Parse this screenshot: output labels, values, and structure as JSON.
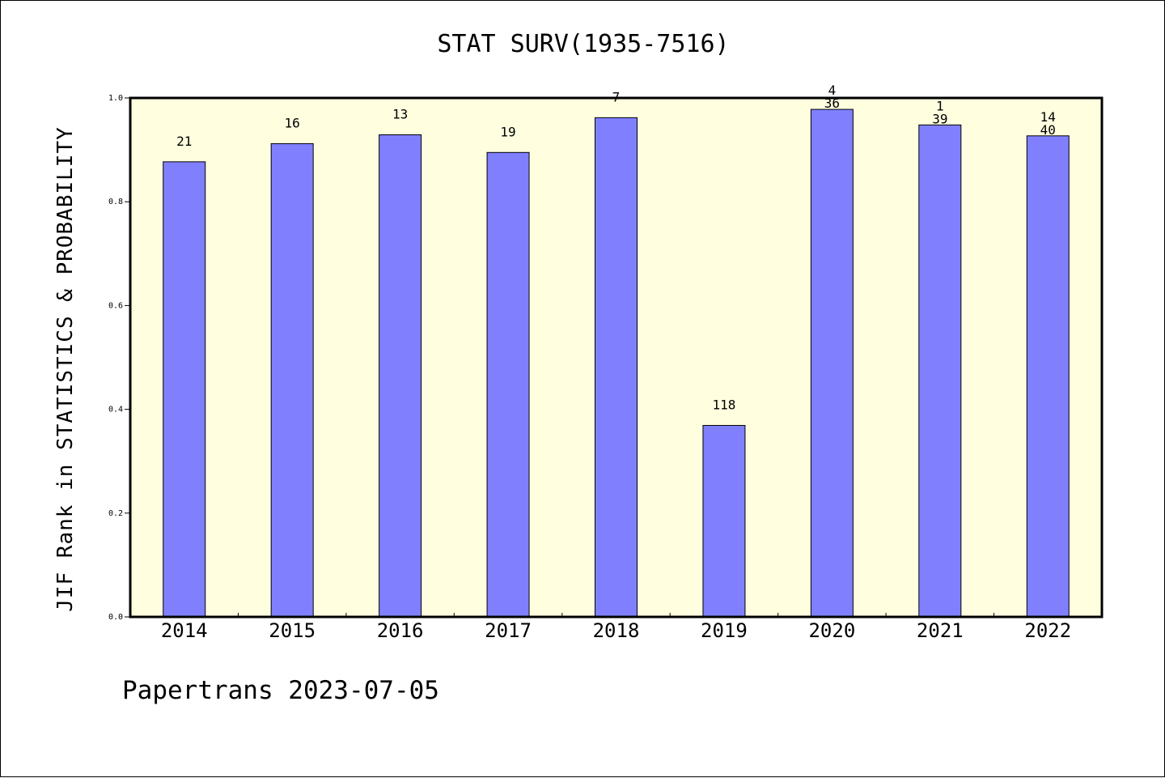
{
  "chart_data": {
    "type": "bar",
    "title": "STAT SURV(1935-7516)",
    "ylabel": "JIF Rank in STATISTICS & PROBABILITY",
    "xlabel": "",
    "categories": [
      "2014",
      "2015",
      "2016",
      "2017",
      "2018",
      "2019",
      "2020",
      "2021",
      "2022"
    ],
    "values": [
      0.877,
      0.912,
      0.929,
      0.895,
      0.962,
      0.369,
      0.978,
      0.948,
      0.927
    ],
    "rank_labels": [
      "21",
      "16",
      "13",
      "19",
      "7",
      "118",
      "36",
      "39",
      "40"
    ],
    "extra_labels": [
      "",
      "",
      "",
      "",
      "",
      "",
      "4",
      "1",
      "14"
    ],
    "ylim": [
      0,
      1.0
    ],
    "yticks": [
      "0.0",
      "0.2",
      "0.4",
      "0.6",
      "0.8",
      "1.0"
    ],
    "grid": false,
    "colors": {
      "bar": "#8080ff",
      "plot_bg": "#ffffe0",
      "edge": "#000000"
    }
  },
  "footer": "Papertrans 2023-07-05"
}
